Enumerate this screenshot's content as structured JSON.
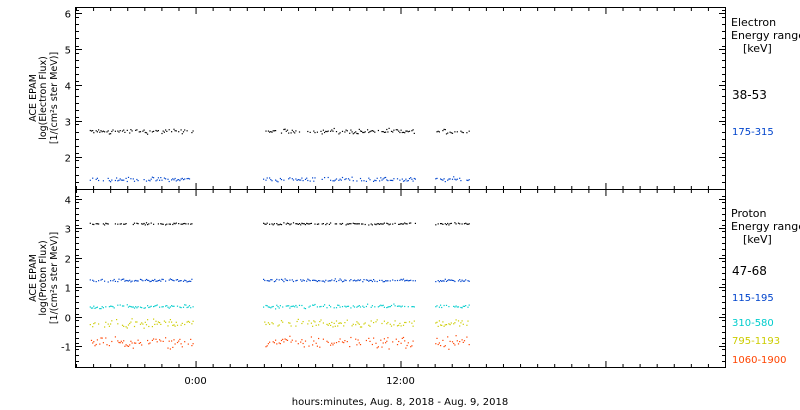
{
  "chart_data": [
    {
      "type": "scatter",
      "ylabel": [
        "ACE EPAM",
        "log(Electron Flux)",
        "[1/(cm²s ster MeV)]"
      ],
      "ylim": [
        1.1,
        6.15
      ],
      "yticks": [
        2,
        3,
        4,
        5,
        6
      ],
      "legend_title": [
        "Electron",
        "Energy range",
        "[keV]"
      ],
      "data_gaps_hours": [
        [
          -0.15,
          3.9
        ],
        [
          12.9,
          14.0
        ]
      ],
      "x_hours_covered": [
        -6.2,
        16.0
      ],
      "series": [
        {
          "name": "38-53",
          "color": "#000000",
          "level": 2.72,
          "spread": 0.04
        },
        {
          "name": "175-315",
          "color": "#0044cc",
          "level": 1.38,
          "spread": 0.04
        }
      ]
    },
    {
      "type": "scatter",
      "ylabel": [
        "ACE EPAM",
        "log(Proton Flux)",
        "[1/(cm²s ster MeV)]"
      ],
      "ylim": [
        -1.7,
        4.3
      ],
      "yticks": [
        -1,
        0,
        1,
        2,
        3,
        4
      ],
      "legend_title": [
        "Proton",
        "Energy range",
        "[keV]"
      ],
      "data_gaps_hours": [
        [
          -0.15,
          3.9
        ],
        [
          12.9,
          14.0
        ]
      ],
      "x_hours_covered": [
        -6.2,
        16.0
      ],
      "series": [
        {
          "name": "47-68",
          "color": "#000000",
          "level": 3.17,
          "spread": 0.02
        },
        {
          "name": "115-195",
          "color": "#0044cc",
          "level": 1.25,
          "spread": 0.03
        },
        {
          "name": "310-580",
          "color": "#00cccc",
          "level": 0.37,
          "spread": 0.04
        },
        {
          "name": "795-1193",
          "color": "#cccc00",
          "level": -0.2,
          "spread": 0.08
        },
        {
          "name": "1060-1900",
          "color": "#ff4400",
          "level": -0.85,
          "spread": 0.12
        }
      ]
    }
  ],
  "x_axis": {
    "range_hours": [
      -7.0,
      31.0
    ],
    "tick_labels": [
      {
        "hours": 0,
        "label": "0:00"
      },
      {
        "hours": 12,
        "label": "12:00"
      }
    ],
    "label": "hours:minutes, Aug.  8, 2018 - Aug.  9, 2018"
  }
}
